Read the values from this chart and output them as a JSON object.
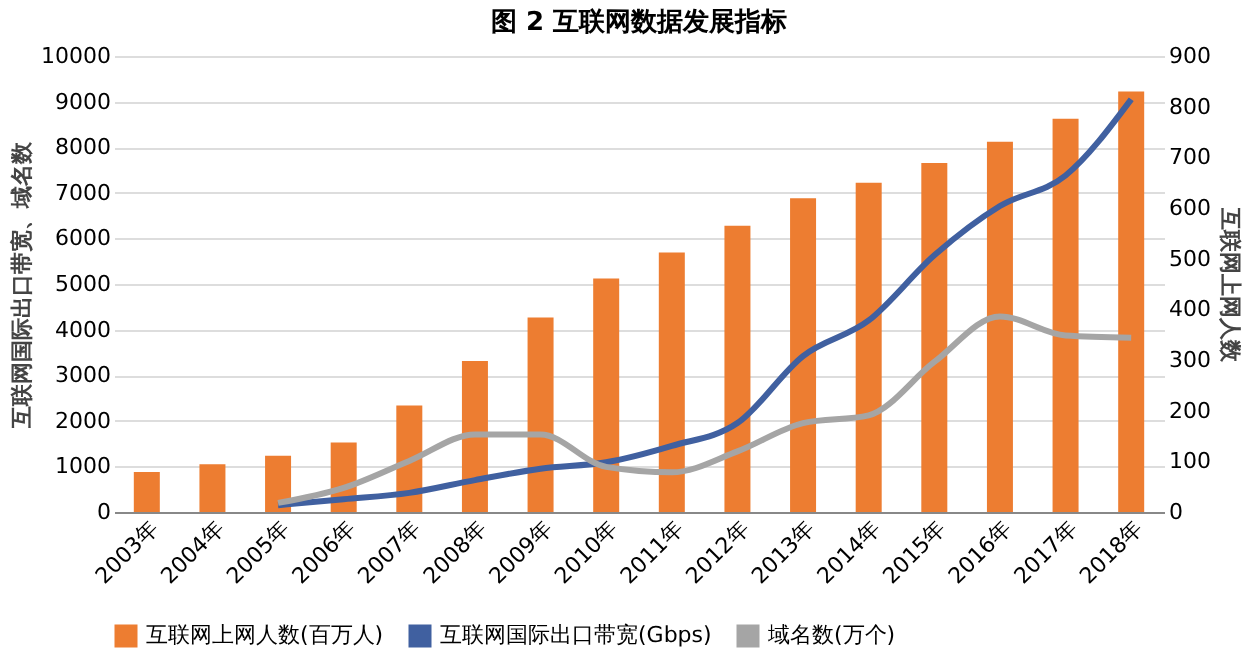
{
  "chart_data": {
    "type": "bar",
    "title": "图 2 互联网数据发展指标",
    "categories": [
      "2003年",
      "2004年",
      "2005年",
      "2006年",
      "2007年",
      "2008年",
      "2009年",
      "2010年",
      "2011年",
      "2012年",
      "2013年",
      "2014年",
      "2015年",
      "2016年",
      "2017年",
      "2018年"
    ],
    "ylabel": "互联网国际出口带宽、域名数",
    "y2label": "互联网上网人数",
    "ylim": [
      0,
      10000
    ],
    "yticks": [
      0,
      1000,
      2000,
      3000,
      4000,
      5000,
      6000,
      7000,
      8000,
      9000,
      10000
    ],
    "y2lim": [
      0,
      900
    ],
    "y2ticks": [
      0,
      100,
      200,
      300,
      400,
      500,
      600,
      700,
      800,
      900
    ],
    "grid": "y",
    "legend": "bottom",
    "series": [
      {
        "name": "互联网上网人数(百万人)",
        "color": "#ed7d31",
        "axis": "y2",
        "values": [
          79,
          94,
          111,
          137,
          210,
          298,
          384,
          461,
          512,
          565,
          619,
          650,
          689,
          731,
          776,
          830
        ]
      },
      {
        "name": "互联网国际出口带宽(Gbps)",
        "color": "#4060a0",
        "type": "line",
        "values": [
          null,
          null,
          150,
          280,
          420,
          700,
          950,
          1090,
          1450,
          1950,
          3420,
          4200,
          5630,
          6710,
          7380,
          9050
        ]
      },
      {
        "name": "域名数(万个)",
        "color": "#a5a5a5",
        "type": "line",
        "values": [
          null,
          null,
          200,
          530,
          1120,
          1700,
          1700,
          990,
          870,
          1330,
          1950,
          2120,
          3290,
          4290,
          3870,
          3820
        ]
      }
    ]
  }
}
